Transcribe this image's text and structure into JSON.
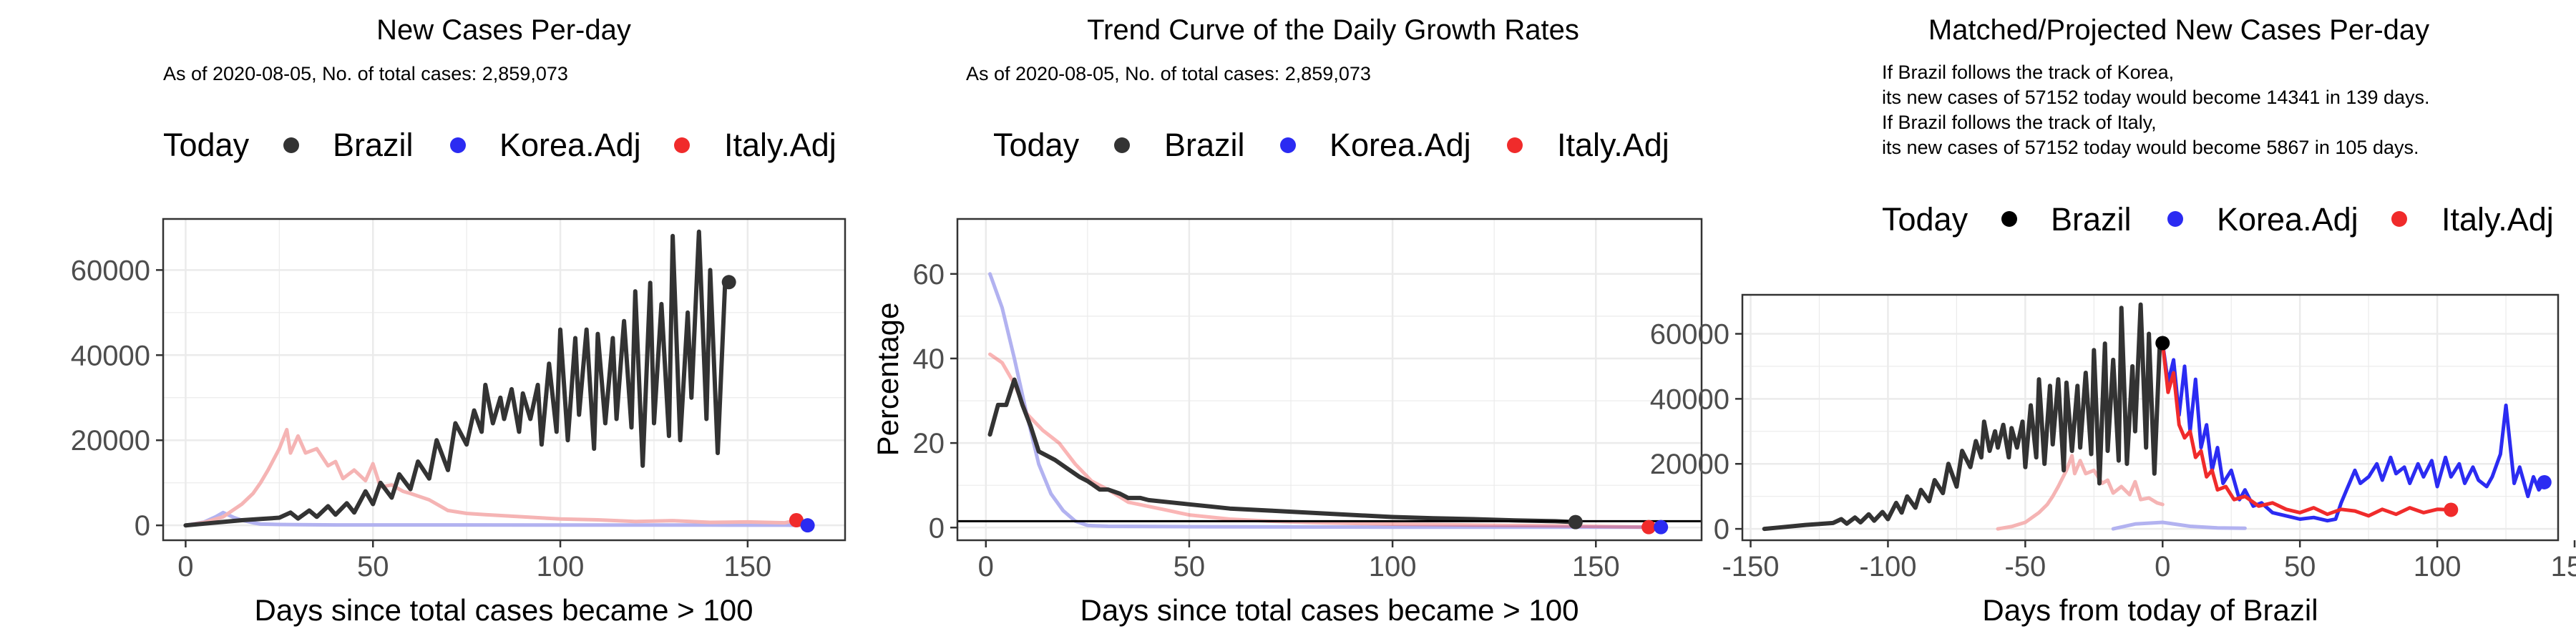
{
  "colors": {
    "brazil": "#333333",
    "brazil_dot": "#000000",
    "korea": "#2b2bf2",
    "italy": "#f02b2b",
    "korea_faint": "#b2b2f0",
    "italy_faint": "#f5b4b4",
    "grid": "#ebebeb",
    "panel_border": "#333333"
  },
  "chart_data": [
    {
      "type": "line",
      "title": "New Cases Per-day",
      "subtitle": "As of 2020-08-05, No. of total cases: 2,859,073",
      "legend": {
        "title": "Today",
        "entries": [
          "Brazil",
          "Korea.Adj",
          "Italy.Adj"
        ]
      },
      "xlabel": "Days since total cases became > 100",
      "ylabel": "",
      "xlim": [
        -6,
        176
      ],
      "ylim": [
        -3500,
        72000
      ],
      "xticks": [
        0,
        50,
        100,
        150
      ],
      "yticks": [
        0,
        20000,
        40000,
        60000
      ],
      "series": [
        {
          "name": "Brazil",
          "x": [
            0,
            5,
            10,
            15,
            20,
            25,
            28,
            30,
            33,
            35,
            38,
            40,
            43,
            45,
            48,
            50,
            52,
            55,
            57,
            60,
            62,
            65,
            67,
            70,
            72,
            75,
            77,
            79,
            80,
            82,
            84,
            85,
            87,
            89,
            90,
            92,
            94,
            95,
            97,
            99,
            100,
            102,
            104,
            105,
            107,
            109,
            110,
            112,
            114,
            115,
            117,
            119,
            120,
            122,
            124,
            125,
            127,
            129,
            130,
            132,
            134,
            135,
            137,
            139,
            140,
            142,
            144,
            145
          ],
          "y": [
            0,
            400,
            800,
            1200,
            1500,
            1800,
            3000,
            1600,
            3500,
            2000,
            4500,
            2500,
            5200,
            3000,
            8000,
            5000,
            10000,
            6500,
            12000,
            8500,
            15000,
            11000,
            20000,
            13000,
            24000,
            19000,
            27000,
            22000,
            33000,
            24000,
            30000,
            25000,
            32000,
            22000,
            31000,
            25000,
            33000,
            19000,
            38000,
            22000,
            46000,
            20000,
            44000,
            26000,
            46000,
            18000,
            45000,
            24000,
            44000,
            25000,
            48000,
            23000,
            55000,
            14000,
            57000,
            24000,
            52000,
            21000,
            68000,
            20000,
            50000,
            30000,
            69000,
            25000,
            60000,
            17000,
            57152,
            57152
          ]
        },
        {
          "name": "Korea.Adj",
          "x": [
            0,
            5,
            8,
            10,
            13,
            15,
            18,
            20,
            25,
            30,
            40,
            60,
            100,
            140,
            160,
            166
          ],
          "y": [
            0,
            800,
            2000,
            3000,
            1800,
            1200,
            600,
            300,
            200,
            150,
            100,
            100,
            80,
            60,
            50,
            0
          ]
        },
        {
          "name": "Italy.Adj",
          "x": [
            0,
            5,
            10,
            15,
            18,
            20,
            22,
            25,
            27,
            28,
            30,
            32,
            35,
            38,
            40,
            42,
            45,
            48,
            50,
            52,
            55,
            58,
            60,
            65,
            70,
            75,
            80,
            90,
            100,
            110,
            120,
            130,
            140,
            150,
            160,
            163
          ],
          "y": [
            0,
            700,
            2000,
            5000,
            7500,
            10000,
            13000,
            18000,
            22500,
            17000,
            21000,
            17000,
            18000,
            14000,
            15000,
            11000,
            13000,
            10500,
            14500,
            9000,
            9500,
            8000,
            7500,
            6000,
            3500,
            2800,
            2500,
            2000,
            1500,
            1300,
            900,
            1100,
            700,
            800,
            600,
            1200
          ]
        }
      ],
      "today_points": [
        {
          "name": "Brazil",
          "x": 145,
          "y": 57152
        },
        {
          "name": "Italy.Adj",
          "x": 163,
          "y": 1200
        },
        {
          "name": "Korea.Adj",
          "x": 166,
          "y": 0
        }
      ]
    },
    {
      "type": "line",
      "title": "Trend Curve of the Daily Growth Rates",
      "subtitle": "As of 2020-08-05, No. of total cases: 2,859,073",
      "legend": {
        "title": "Today",
        "entries": [
          "Brazil",
          "Korea.Adj",
          "Italy.Adj"
        ]
      },
      "xlabel": "Days since total cases became > 100",
      "ylabel": "Percentage",
      "xlim": [
        -7,
        176
      ],
      "ylim": [
        -3,
        73
      ],
      "xticks": [
        0,
        50,
        100,
        150
      ],
      "yticks": [
        0,
        20,
        40,
        60
      ],
      "hline": 1.5,
      "series": [
        {
          "name": "Brazil",
          "x": [
            1,
            3,
            5,
            7,
            9,
            11,
            13,
            15,
            17,
            20,
            23,
            25,
            28,
            30,
            33,
            35,
            38,
            40,
            45,
            50,
            55,
            60,
            70,
            80,
            90,
            100,
            110,
            120,
            130,
            140,
            145
          ],
          "y": [
            22,
            29,
            29,
            35,
            29,
            24,
            18,
            17,
            16,
            14,
            12,
            11,
            9,
            9,
            8,
            7,
            7,
            6.5,
            6,
            5.5,
            5,
            4.5,
            4,
            3.5,
            3,
            2.5,
            2.2,
            2,
            1.7,
            1.5,
            1.3
          ]
        },
        {
          "name": "Korea.Adj",
          "x": [
            1,
            4,
            7,
            10,
            13,
            16,
            19,
            22,
            25,
            30,
            50,
            100,
            150,
            166
          ],
          "y": [
            60,
            52,
            40,
            27,
            15,
            8,
            4,
            1.5,
            0.5,
            0.3,
            0.2,
            0.1,
            0.1,
            0.1
          ]
        },
        {
          "name": "Italy.Adj",
          "x": [
            1,
            4,
            7,
            10,
            14,
            18,
            22,
            26,
            30,
            35,
            40,
            45,
            50,
            60,
            70,
            80,
            100,
            120,
            140,
            163
          ],
          "y": [
            41,
            39,
            34,
            27,
            23,
            20,
            15,
            11,
            9,
            6,
            5,
            4,
            3,
            2,
            1.5,
            1.2,
            0.8,
            0.6,
            0.4,
            0.1
          ]
        }
      ],
      "today_points": [
        {
          "name": "Brazil",
          "x": 145,
          "y": 1.3
        },
        {
          "name": "Italy.Adj",
          "x": 163,
          "y": 0.1
        },
        {
          "name": "Korea.Adj",
          "x": 166,
          "y": 0.1
        }
      ]
    },
    {
      "type": "line",
      "title": "Matched/Projected New Cases Per-day",
      "subtitle_lines": [
        "If Brazil follows the track of Korea,",
        "its new cases of 57152 today would become 14341 in 139 days.",
        "If Brazil follows the track of Italy,",
        "its new cases of 57152 today would become 5867 in 105 days."
      ],
      "legend": {
        "title": "Today",
        "entries": [
          "Brazil",
          "Korea.Adj",
          "Italy.Adj"
        ]
      },
      "xlabel": "Days from today of Brazil",
      "ylabel": "",
      "xlim": [
        -153,
        144
      ],
      "ylim": [
        -3500,
        72000
      ],
      "xticks": [
        -150,
        -100,
        -50,
        0,
        50,
        100,
        150
      ],
      "yticks": [
        0,
        20000,
        40000,
        60000
      ],
      "series": [
        {
          "name": "Brazil",
          "x": [
            -145,
            -140,
            -135,
            -130,
            -125,
            -120,
            -117,
            -115,
            -112,
            -110,
            -107,
            -105,
            -102,
            -100,
            -97,
            -95,
            -93,
            -90,
            -88,
            -85,
            -83,
            -80,
            -78,
            -75,
            -73,
            -70,
            -68,
            -66,
            -65,
            -63,
            -61,
            -60,
            -58,
            -56,
            -55,
            -53,
            -51,
            -50,
            -48,
            -46,
            -45,
            -43,
            -41,
            -40,
            -38,
            -36,
            -35,
            -33,
            -31,
            -30,
            -28,
            -26,
            -25,
            -23,
            -21,
            -20,
            -18,
            -16,
            -15,
            -13,
            -11,
            -10,
            -8,
            -6,
            -5,
            -3,
            -1,
            0
          ],
          "y": [
            0,
            400,
            800,
            1200,
            1500,
            1800,
            3000,
            1600,
            3500,
            2000,
            4500,
            2500,
            5200,
            3000,
            8000,
            5000,
            10000,
            6500,
            12000,
            8500,
            15000,
            11000,
            20000,
            13000,
            24000,
            19000,
            27000,
            22000,
            33000,
            24000,
            30000,
            25000,
            32000,
            22000,
            31000,
            25000,
            33000,
            19000,
            38000,
            22000,
            46000,
            20000,
            44000,
            26000,
            46000,
            18000,
            45000,
            24000,
            44000,
            25000,
            48000,
            23000,
            55000,
            14000,
            57000,
            24000,
            52000,
            21000,
            68000,
            20000,
            50000,
            30000,
            69000,
            25000,
            60000,
            17000,
            57152,
            57152
          ]
        },
        {
          "name": "Korea.Adj (matched)",
          "x": [
            -18,
            -10,
            0,
            10,
            20,
            30
          ],
          "y": [
            0,
            1500,
            2000,
            800,
            300,
            200
          ]
        },
        {
          "name": "Italy.Adj (matched)",
          "x": [
            -60,
            -55,
            -50,
            -45,
            -42,
            -40,
            -38,
            -35,
            -33,
            -32,
            -30,
            -28,
            -25,
            -22,
            -20,
            -18,
            -15,
            -12,
            -10,
            -8,
            -5,
            -2,
            0
          ],
          "y": [
            0,
            700,
            2000,
            5000,
            7500,
            10000,
            13000,
            18000,
            22500,
            17000,
            21000,
            17000,
            18000,
            14000,
            15000,
            11000,
            13000,
            10500,
            14500,
            9000,
            9500,
            8000,
            7500
          ]
        },
        {
          "name": "Korea.Adj (projected)",
          "x": [
            0,
            2,
            4,
            6,
            8,
            10,
            12,
            14,
            16,
            18,
            20,
            22,
            25,
            28,
            30,
            33,
            36,
            40,
            45,
            50,
            55,
            60,
            63,
            65,
            67,
            70,
            72,
            75,
            78,
            80,
            83,
            85,
            88,
            90,
            93,
            95,
            98,
            100,
            103,
            105,
            108,
            110,
            113,
            115,
            118,
            120,
            123,
            125,
            128,
            130,
            133,
            135,
            137,
            139
          ],
          "y": [
            57152,
            45000,
            52000,
            35000,
            50000,
            30000,
            46000,
            25000,
            32000,
            18000,
            25000,
            14000,
            18000,
            9000,
            12000,
            7000,
            8000,
            5000,
            4000,
            3000,
            3500,
            2500,
            3000,
            8000,
            12000,
            18000,
            14000,
            16000,
            20000,
            15000,
            22000,
            17000,
            19000,
            14000,
            20000,
            16000,
            21000,
            13000,
            22000,
            16000,
            20000,
            14000,
            19000,
            15000,
            13000,
            16000,
            23000,
            38000,
            14000,
            19000,
            10000,
            16000,
            12000,
            14341
          ]
        },
        {
          "name": "Italy.Adj (projected)",
          "x": [
            0,
            2,
            4,
            6,
            8,
            10,
            12,
            14,
            16,
            18,
            20,
            23,
            26,
            30,
            35,
            40,
            45,
            50,
            55,
            60,
            65,
            70,
            75,
            80,
            85,
            90,
            95,
            100,
            105
          ],
          "y": [
            57152,
            42000,
            48000,
            32000,
            28000,
            30000,
            22000,
            24000,
            16000,
            18000,
            12000,
            13000,
            9000,
            10000,
            7000,
            8000,
            6000,
            5000,
            6500,
            4500,
            6000,
            5500,
            4000,
            6000,
            4500,
            6500,
            5000,
            6000,
            5867
          ]
        }
      ],
      "today_points": [
        {
          "name": "Brazil",
          "x": 0,
          "y": 57152
        },
        {
          "name": "Italy.Adj",
          "x": 105,
          "y": 5867
        },
        {
          "name": "Korea.Adj",
          "x": 139,
          "y": 14341
        }
      ]
    }
  ]
}
